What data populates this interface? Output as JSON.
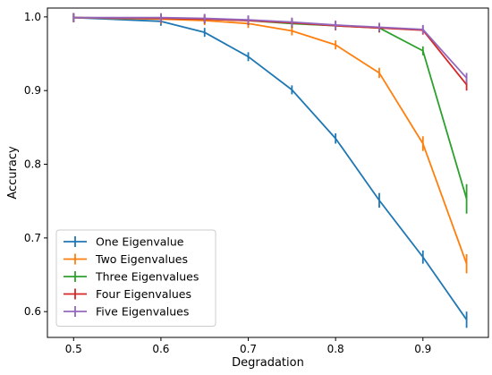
{
  "chart_data": {
    "type": "line",
    "xlabel": "Degradation",
    "ylabel": "Accuracy",
    "xlim": [
      0.47,
      0.975
    ],
    "ylim": [
      0.565,
      1.012
    ],
    "xticks": [
      0.5,
      0.6,
      0.7,
      0.8,
      0.9
    ],
    "xtick_labels": [
      "0.5",
      "0.6",
      "0.7",
      "0.8",
      "0.9"
    ],
    "yticks": [
      0.6,
      0.7,
      0.8,
      0.9,
      1.0
    ],
    "ytick_labels": [
      "0.6",
      "0.7",
      "0.8",
      "0.9",
      "1.0"
    ],
    "grid": false,
    "legend_position": "bottom-left",
    "x": [
      0.5,
      0.6,
      0.65,
      0.7,
      0.75,
      0.8,
      0.85,
      0.9,
      0.95
    ],
    "series": [
      {
        "name": "One Eigenvalue",
        "color": "#1f77b4",
        "values": [
          0.999,
          0.994,
          0.979,
          0.946,
          0.901,
          0.835,
          0.751,
          0.674,
          0.589
        ],
        "errors": [
          0.001,
          0.002,
          0.003,
          0.005,
          0.006,
          0.007,
          0.01,
          0.009,
          0.011
        ]
      },
      {
        "name": "Two Eigenvalues",
        "color": "#ff7f0e",
        "values": [
          0.999,
          0.997,
          0.995,
          0.991,
          0.981,
          0.962,
          0.924,
          0.828,
          0.665
        ],
        "errors": [
          0.0005,
          0.001,
          0.0015,
          0.002,
          0.004,
          0.005,
          0.007,
          0.01,
          0.013
        ]
      },
      {
        "name": "Three Eigenvalues",
        "color": "#2ca02c",
        "values": [
          0.999,
          0.998,
          0.997,
          0.995,
          0.991,
          0.988,
          0.985,
          0.954,
          0.753
        ],
        "errors": [
          0.0005,
          0.0005,
          0.001,
          0.001,
          0.001,
          0.002,
          0.002,
          0.003,
          0.02
        ]
      },
      {
        "name": "Four Eigenvalues",
        "color": "#d62728",
        "values": [
          0.999,
          0.998,
          0.997,
          0.995,
          0.992,
          0.988,
          0.985,
          0.982,
          0.908
        ],
        "errors": [
          0.0005,
          0.0005,
          0.0005,
          0.001,
          0.001,
          0.001,
          0.002,
          0.002,
          0.008
        ]
      },
      {
        "name": "Five Eigenvalues",
        "color": "#9467bd",
        "values": [
          0.999,
          0.999,
          0.998,
          0.996,
          0.993,
          0.989,
          0.986,
          0.983,
          0.917
        ],
        "errors": [
          0.0005,
          0.0005,
          0.0005,
          0.001,
          0.001,
          0.001,
          0.001,
          0.002,
          0.007
        ]
      }
    ]
  }
}
